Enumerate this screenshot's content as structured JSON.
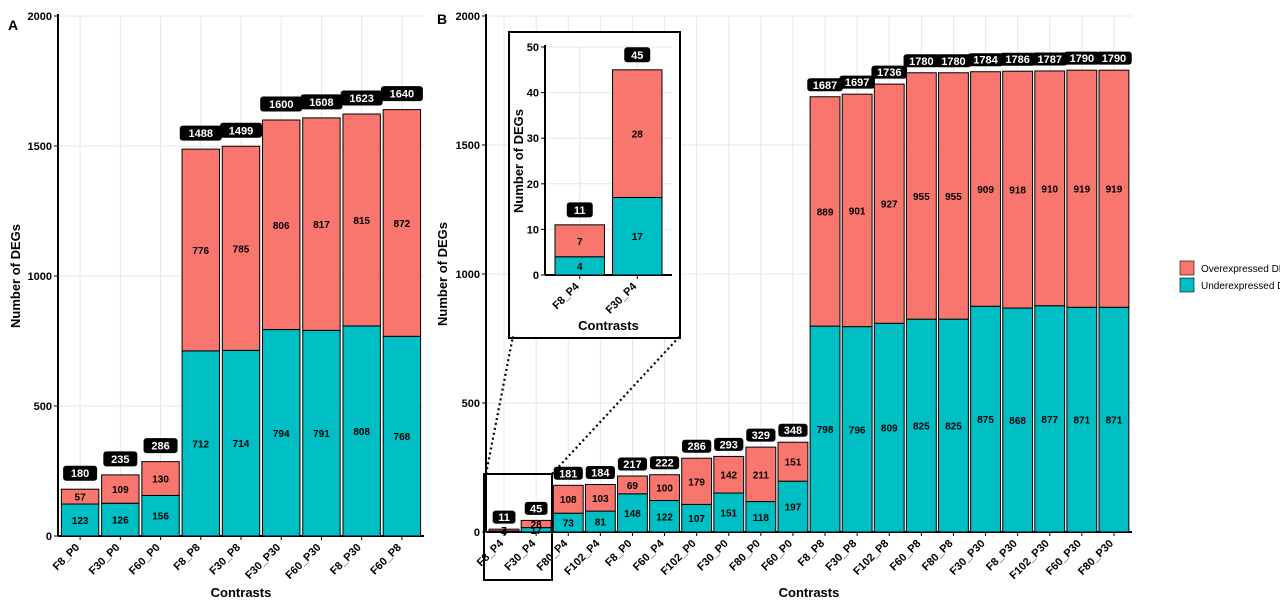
{
  "colors": {
    "over": "#F8766D",
    "under": "#00BFC4",
    "grid": "#e6e6e6"
  },
  "legend": {
    "over_label": "Overexpressed DEGs",
    "under_label": "Underexpressed DEGs",
    "position": "right"
  },
  "chart_data": [
    {
      "panel": "A",
      "type": "bar",
      "stacked": true,
      "xlabel": "Contrasts",
      "ylabel": "Number of DEGs",
      "ylim": [
        0,
        2000
      ],
      "yticks": [
        0,
        500,
        1000,
        1500,
        2000
      ],
      "categories": [
        "F8_P0",
        "F30_P0",
        "F60_P0",
        "F8_P8",
        "F30_P8",
        "F30_P30",
        "F60_P30",
        "F8_P30",
        "F60_P8"
      ],
      "series": [
        {
          "name": "Underexpressed DEGs",
          "values": [
            123,
            126,
            156,
            712,
            714,
            794,
            791,
            808,
            768
          ]
        },
        {
          "name": "Overexpressed DEGs",
          "values": [
            57,
            109,
            130,
            776,
            785,
            806,
            817,
            815,
            872
          ]
        }
      ],
      "totals": [
        180,
        235,
        286,
        1488,
        1499,
        1600,
        1608,
        1623,
        1640
      ]
    },
    {
      "panel": "B",
      "type": "bar",
      "stacked": true,
      "xlabel": "Contrasts",
      "ylabel": "Number of DEGs",
      "ylim": [
        0,
        2000
      ],
      "yticks": [
        0,
        500,
        1000,
        1500,
        2000
      ],
      "categories": [
        "F8_P4",
        "F30_P4",
        "F80_P4",
        "F102_P4",
        "F8_P0",
        "F60_P4",
        "F102_P0",
        "F30_P0",
        "F80_P0",
        "F60_P0",
        "F8_P8",
        "F30_P8",
        "F102_P8",
        "F60_P8",
        "F80_P8",
        "F30_P30",
        "F8_P30",
        "F102_P30",
        "F60_P30",
        "F80_P30"
      ],
      "series": [
        {
          "name": "Underexpressed DEGs",
          "values": [
            4,
            17,
            73,
            81,
            148,
            122,
            107,
            151,
            118,
            197,
            798,
            796,
            809,
            825,
            825,
            875,
            868,
            877,
            871,
            871
          ]
        },
        {
          "name": "Overexpressed DEGs",
          "values": [
            7,
            28,
            108,
            103,
            69,
            100,
            179,
            142,
            211,
            151,
            889,
            901,
            927,
            955,
            955,
            909,
            918,
            910,
            919,
            919
          ]
        }
      ],
      "totals": [
        11,
        45,
        181,
        184,
        217,
        222,
        286,
        293,
        329,
        348,
        1687,
        1697,
        1736,
        1780,
        1780,
        1784,
        1786,
        1787,
        1790,
        1790
      ]
    },
    {
      "panel": "B-inset",
      "type": "bar",
      "stacked": true,
      "xlabel": "Contrasts",
      "ylabel": "Number of DEGs",
      "ylim": [
        0,
        50
      ],
      "yticks": [
        0,
        10,
        20,
        30,
        40,
        50
      ],
      "categories": [
        "F8_P4",
        "F30_P4"
      ],
      "series": [
        {
          "name": "Underexpressed DEGs",
          "values": [
            4,
            17
          ]
        },
        {
          "name": "Overexpressed DEGs",
          "values": [
            7,
            28
          ]
        }
      ],
      "totals": [
        11,
        45
      ]
    }
  ]
}
